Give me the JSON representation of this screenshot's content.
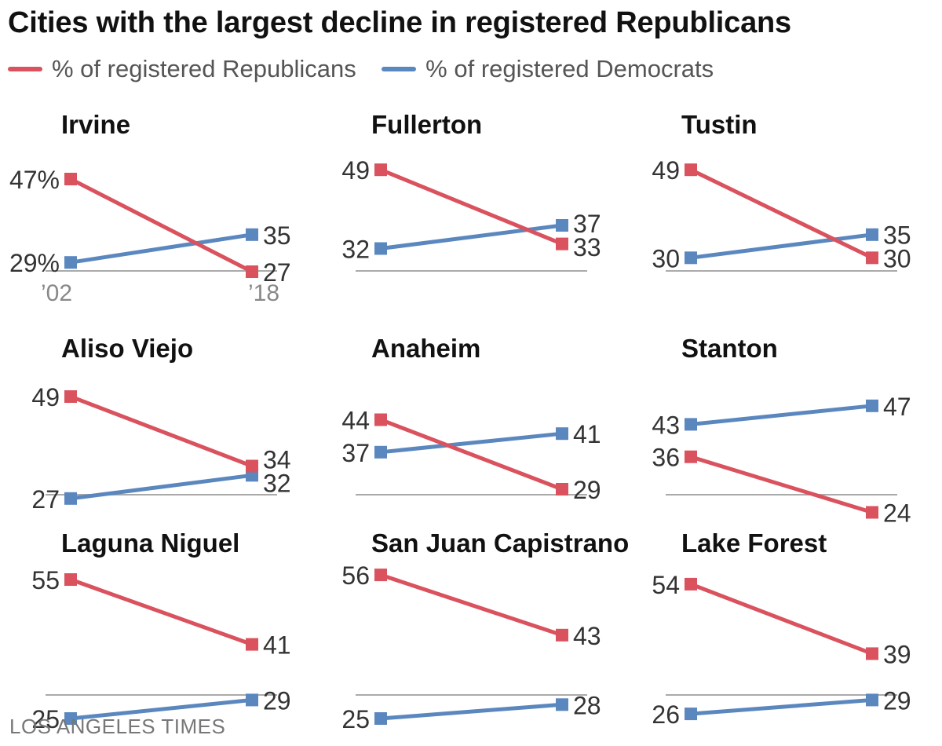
{
  "title": "Cities with the largest decline in registered Republicans",
  "legend": [
    {
      "label": "% of registered Republicans",
      "color": "#d9525e"
    },
    {
      "label": "% of registered Democrats",
      "color": "#5b87bf"
    }
  ],
  "source": "LOS ANGELES TIMES",
  "colors": {
    "republican": "#d9525e",
    "democrat": "#5b87bf",
    "axis": "#aaaaaa",
    "label": "#333333"
  },
  "chart_data": {
    "type": "line",
    "x": [
      "'02",
      "'18"
    ],
    "x_tick_labels": [
      "’02",
      "’18"
    ],
    "series_names": [
      "% of registered Republicans",
      "% of registered Democrats"
    ],
    "panels": [
      {
        "city": "Irvine",
        "republicans": [
          47,
          27
        ],
        "democrats": [
          29,
          35
        ],
        "labels": {
          "rep": [
            "47%",
            "27"
          ],
          "dem": [
            "29%",
            "35"
          ]
        }
      },
      {
        "city": "Fullerton",
        "republicans": [
          49,
          33
        ],
        "democrats": [
          32,
          37
        ],
        "labels": {
          "rep": [
            "49",
            "33"
          ],
          "dem": [
            "32",
            "37"
          ]
        }
      },
      {
        "city": "Tustin",
        "republicans": [
          49,
          30
        ],
        "democrats": [
          30,
          35
        ],
        "labels": {
          "rep": [
            "49",
            "30"
          ],
          "dem": [
            "30",
            "35"
          ]
        }
      },
      {
        "city": "Aliso Viejo",
        "republicans": [
          49,
          34
        ],
        "democrats": [
          27,
          32
        ],
        "labels": {
          "rep": [
            "49",
            "34"
          ],
          "dem": [
            "27",
            "32"
          ]
        }
      },
      {
        "city": "Anaheim",
        "republicans": [
          44,
          29
        ],
        "democrats": [
          37,
          41
        ],
        "labels": {
          "rep": [
            "44",
            "29"
          ],
          "dem": [
            "37",
            "41"
          ]
        }
      },
      {
        "city": "Stanton",
        "republicans": [
          36,
          24
        ],
        "democrats": [
          43,
          47
        ],
        "labels": {
          "rep": [
            "36",
            "24"
          ],
          "dem": [
            "43",
            "47"
          ]
        }
      },
      {
        "city": "Laguna Niguel",
        "republicans": [
          55,
          41
        ],
        "democrats": [
          25,
          29
        ],
        "labels": {
          "rep": [
            "55",
            "41"
          ],
          "dem": [
            "25",
            "29"
          ]
        }
      },
      {
        "city": "San Juan Capistrano",
        "republicans": [
          56,
          43
        ],
        "democrats": [
          25,
          28
        ],
        "labels": {
          "rep": [
            "56",
            "43"
          ],
          "dem": [
            "25",
            "28"
          ]
        }
      },
      {
        "city": "Lake Forest",
        "republicans": [
          54,
          39
        ],
        "democrats": [
          26,
          29
        ],
        "labels": {
          "rep": [
            "54",
            "39"
          ],
          "dem": [
            "26",
            "29"
          ]
        }
      }
    ]
  }
}
